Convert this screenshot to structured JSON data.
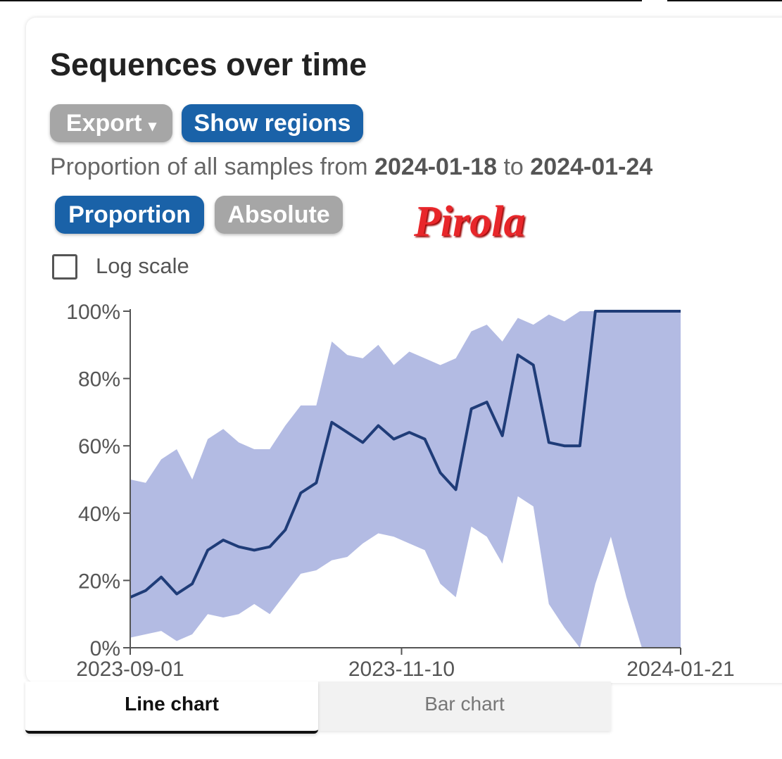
{
  "header": {
    "title": "Sequences over time"
  },
  "buttons": {
    "export": "Export",
    "show_regions": "Show regions"
  },
  "description": {
    "prefix": "Proportion of all samples from",
    "start": "2024-01-18",
    "middle": "to",
    "end": "2024-01-24"
  },
  "toggle": [
    "Proportion",
    "Absolute"
  ],
  "annotation": "Pirola",
  "log_scale": "Log scale",
  "chart_data": {
    "type": "line",
    "x": [
      "2023-09-01",
      "2023-09-05",
      "2023-09-09",
      "2023-09-13",
      "2023-09-17",
      "2023-09-21",
      "2023-09-25",
      "2023-09-29",
      "2023-10-03",
      "2023-10-07",
      "2023-10-11",
      "2023-10-15",
      "2023-10-19",
      "2023-10-23",
      "2023-10-27",
      "2023-10-31",
      "2023-11-04",
      "2023-11-08",
      "2023-11-12",
      "2023-11-16",
      "2023-11-20",
      "2023-11-24",
      "2023-11-28",
      "2023-12-02",
      "2023-12-06",
      "2023-12-10",
      "2023-12-14",
      "2023-12-18",
      "2023-12-22",
      "2023-12-26",
      "2023-12-30",
      "2024-01-03",
      "2024-01-07",
      "2024-01-11",
      "2024-01-15",
      "2024-01-19",
      "2024-01-21"
    ],
    "series": [
      {
        "color": "#1f3c78",
        "values": [
          15,
          17,
          21,
          16,
          19,
          29,
          32,
          30,
          29,
          30,
          35,
          46,
          49,
          67,
          64,
          61,
          66,
          62,
          64,
          62,
          52,
          47,
          71,
          73,
          63,
          87,
          84,
          61,
          60,
          60,
          100,
          100,
          100,
          100,
          100,
          100,
          100
        ]
      }
    ],
    "band": {
      "color": "#b3bbe3",
      "upper": [
        50,
        49,
        56,
        59,
        50,
        62,
        65,
        61,
        59,
        59,
        66,
        72,
        72,
        91,
        87,
        86,
        90,
        84,
        88,
        86,
        84,
        86,
        94,
        96,
        91,
        98,
        96,
        99,
        97,
        100,
        100,
        100,
        100,
        100,
        100,
        100,
        100
      ],
      "lower": [
        3,
        4,
        5,
        2,
        4,
        10,
        9,
        10,
        13,
        10,
        16,
        22,
        23,
        26,
        27,
        31,
        34,
        33,
        31,
        29,
        19,
        15,
        36,
        33,
        25,
        45,
        42,
        13,
        6,
        0,
        19,
        33,
        15,
        0,
        0,
        0,
        0
      ]
    },
    "xlim": [
      "2023-09-01",
      "2024-01-21"
    ],
    "xticks": [
      "2023-09-01",
      "2023-11-10",
      "2024-01-21"
    ],
    "ylim": [
      0,
      100
    ],
    "yticks": [
      {
        "value": 0,
        "label": "0%"
      },
      {
        "value": 20,
        "label": "20%"
      },
      {
        "value": 40,
        "label": "40%"
      },
      {
        "value": 60,
        "label": "60%"
      },
      {
        "value": 80,
        "label": "80%"
      },
      {
        "value": 100,
        "label": "100%"
      }
    ]
  },
  "tabs": [
    "Line chart",
    "Bar chart"
  ]
}
